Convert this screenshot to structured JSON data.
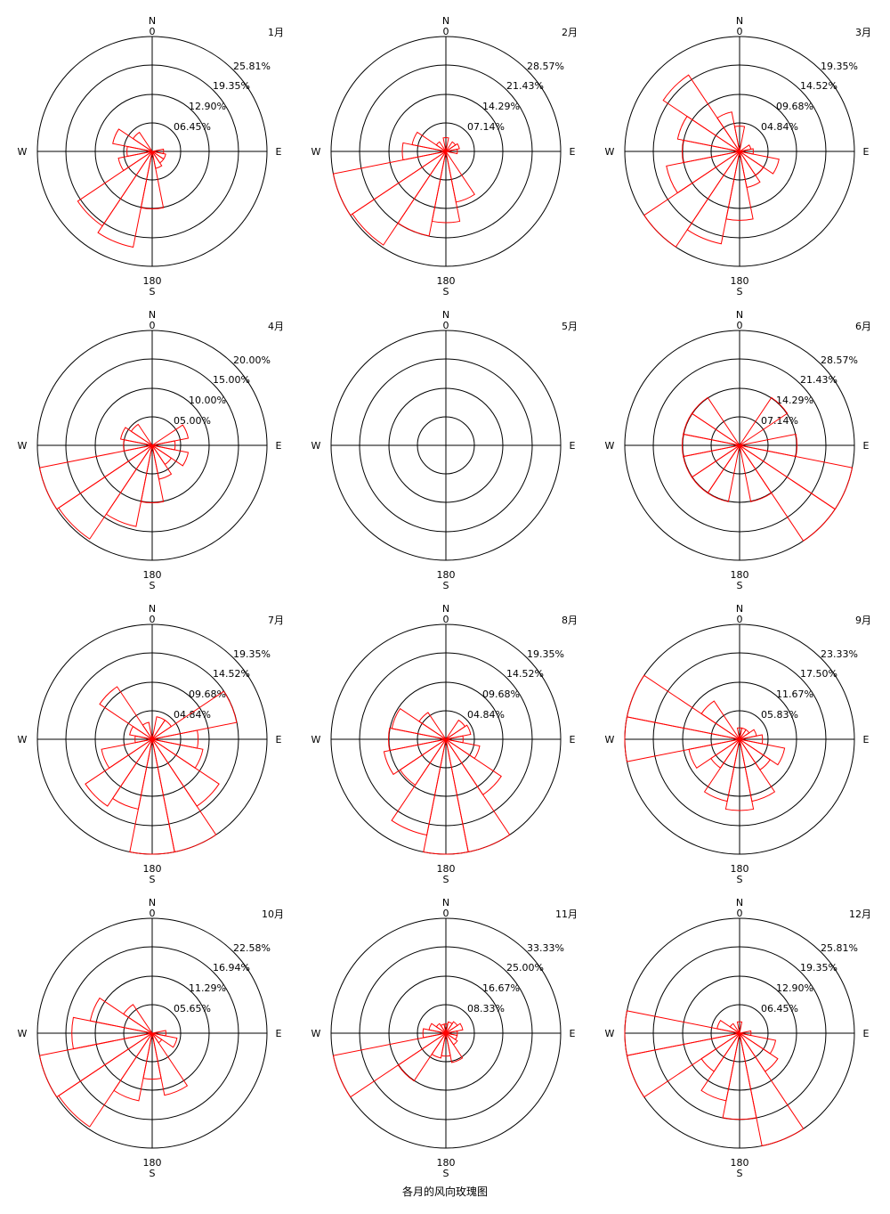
{
  "caption": "各月的风向玫瑰图",
  "colors": {
    "axis": "#000000",
    "rose": "#ff0000"
  },
  "chart_data": [
    {
      "type": "polar-bar",
      "month_label": "1月",
      "compass": {
        "n": "N",
        "s": "S",
        "e": "E",
        "w": "W",
        "north_deg": "0",
        "south_deg": "180"
      },
      "ring_labels": [
        "06.45%",
        "12.90%",
        "19.35%",
        "25.81%"
      ],
      "ring_unit_max": 1,
      "sectors": [
        0,
        0,
        0,
        0,
        0.1,
        0.12,
        0.12,
        0.15,
        0.5,
        0.85,
        0.78,
        0.3,
        0.22,
        0.35,
        0.2,
        0
      ]
    },
    {
      "type": "polar-bar",
      "month_label": "2月",
      "compass": {
        "n": "N",
        "s": "S",
        "e": "E",
        "w": "W",
        "north_deg": "0",
        "south_deg": "180"
      },
      "ring_labels": [
        "07.14%",
        "14.29%",
        "21.43%",
        "28.57%"
      ],
      "ring_unit_max": 1,
      "sectors": [
        0.12,
        0,
        0.1,
        0.12,
        0.1,
        0,
        0,
        0.45,
        0.62,
        0.75,
        0.98,
        1.0,
        0.38,
        0.3,
        0.1,
        0
      ]
    },
    {
      "type": "polar-bar",
      "month_label": "3月",
      "compass": {
        "n": "N",
        "s": "S",
        "e": "E",
        "w": "W",
        "north_deg": "0",
        "south_deg": "180"
      },
      "ring_labels": [
        "04.84%",
        "09.68%",
        "14.52%",
        "19.35%"
      ],
      "ring_unit_max": 1,
      "sectors": [
        0.22,
        0,
        0,
        0.1,
        0.12,
        0.35,
        0.25,
        0.32,
        0.6,
        0.82,
        1.0,
        0.65,
        0.5,
        0.55,
        0.8,
        0.35
      ]
    },
    {
      "type": "polar-bar",
      "month_label": "4月",
      "compass": {
        "n": "N",
        "s": "S",
        "e": "E",
        "w": "W",
        "north_deg": "0",
        "south_deg": "180"
      },
      "ring_labels": [
        "05.00%",
        "10.00%",
        "15.00%",
        "20.00%"
      ],
      "ring_unit_max": 1,
      "sectors": [
        0,
        0,
        0,
        0.32,
        0.2,
        0.32,
        0.2,
        0.3,
        0.5,
        0.72,
        0.98,
        1.0,
        0.25,
        0.28,
        0.22,
        0
      ]
    },
    {
      "type": "polar-bar",
      "month_label": "5月",
      "compass": {
        "n": "N",
        "s": "S",
        "e": "E",
        "w": "W",
        "north_deg": "0",
        "south_deg": "180"
      },
      "ring_labels": [],
      "ring_unit_max": 1,
      "sectors": []
    },
    {
      "type": "polar-bar",
      "month_label": "6月",
      "compass": {
        "n": "N",
        "s": "S",
        "e": "E",
        "w": "W",
        "north_deg": "0",
        "south_deg": "180"
      },
      "ring_labels": [
        "07.14%",
        "14.29%",
        "21.43%",
        "28.57%"
      ],
      "ring_unit_max": 1,
      "sectors": [
        0,
        0,
        0.5,
        0,
        0.5,
        1.0,
        1.0,
        0.5,
        0,
        0.5,
        0.5,
        0.5,
        0.5,
        0.5,
        0.5,
        0
      ]
    },
    {
      "type": "polar-bar",
      "month_label": "7月",
      "compass": {
        "n": "N",
        "s": "S",
        "e": "E",
        "w": "W",
        "north_deg": "0",
        "south_deg": "180"
      },
      "ring_labels": [
        "04.84%",
        "09.68%",
        "14.52%",
        "19.35%"
      ],
      "ring_unit_max": 1,
      "sectors": [
        0,
        0.2,
        0.2,
        0.75,
        0.4,
        0.45,
        0.7,
        1.0,
        1.0,
        0.62,
        0.7,
        0.45,
        0.15,
        0.2,
        0.55,
        0.15
      ]
    },
    {
      "type": "polar-bar",
      "month_label": "8月",
      "compass": {
        "n": "N",
        "s": "S",
        "e": "E",
        "w": "W",
        "north_deg": "0",
        "south_deg": "180"
      },
      "ring_labels": [
        "04.84%",
        "09.68%",
        "14.52%",
        "19.35%"
      ],
      "ring_unit_max": 1,
      "sectors": [
        0,
        0,
        0.2,
        0.22,
        0.15,
        0.3,
        0.58,
        1.0,
        1.0,
        0.85,
        0.48,
        0.55,
        0.5,
        0.48,
        0.28,
        0
      ]
    },
    {
      "type": "polar-bar",
      "month_label": "9月",
      "compass": {
        "n": "N",
        "s": "S",
        "e": "E",
        "w": "W",
        "north_deg": "0",
        "south_deg": "180"
      },
      "ring_labels": [
        "05.83%",
        "11.67%",
        "17.50%",
        "23.33%"
      ],
      "ring_unit_max": 1,
      "sectors": [
        0.1,
        0.1,
        0.1,
        0.15,
        0.2,
        0.4,
        0.32,
        0.55,
        0.62,
        0.55,
        0.3,
        0.45,
        1.0,
        1.0,
        0.4,
        0
      ]
    },
    {
      "type": "polar-bar",
      "month_label": "10月",
      "compass": {
        "n": "N",
        "s": "S",
        "e": "E",
        "w": "W",
        "north_deg": "0",
        "south_deg": "180"
      },
      "ring_labels": [
        "05.65%",
        "11.29%",
        "16.94%",
        "22.58%"
      ],
      "ring_unit_max": 1,
      "sectors": [
        0,
        0,
        0,
        0,
        0.12,
        0.22,
        0.1,
        0.55,
        0.4,
        0.6,
        0.98,
        1.0,
        0.7,
        0.55,
        0.3,
        0
      ]
    },
    {
      "type": "polar-bar",
      "month_label": "11月",
      "compass": {
        "n": "N",
        "s": "S",
        "e": "E",
        "w": "W",
        "north_deg": "0",
        "south_deg": "180"
      },
      "ring_labels": [
        "08.33%",
        "16.67%",
        "25.00%",
        "33.33%"
      ],
      "ring_unit_max": 1,
      "sectors": [
        0.08,
        0.1,
        0.12,
        0.15,
        0.1,
        0.1,
        0.12,
        0.26,
        0.2,
        0.22,
        0.5,
        1.0,
        0.2,
        0.15,
        0.1,
        0.08
      ]
    },
    {
      "type": "polar-bar",
      "month_label": "12月",
      "compass": {
        "n": "N",
        "s": "S",
        "e": "E",
        "w": "W",
        "north_deg": "0",
        "south_deg": "180"
      },
      "ring_labels": [
        "06.45%",
        "12.90%",
        "19.35%",
        "25.81%"
      ],
      "ring_unit_max": 1,
      "sectors": [
        0.1,
        0,
        0,
        0,
        0.1,
        0.32,
        0.4,
        1.0,
        0.75,
        0.6,
        0.4,
        1.0,
        1.0,
        0.2,
        0.1,
        0
      ]
    }
  ]
}
